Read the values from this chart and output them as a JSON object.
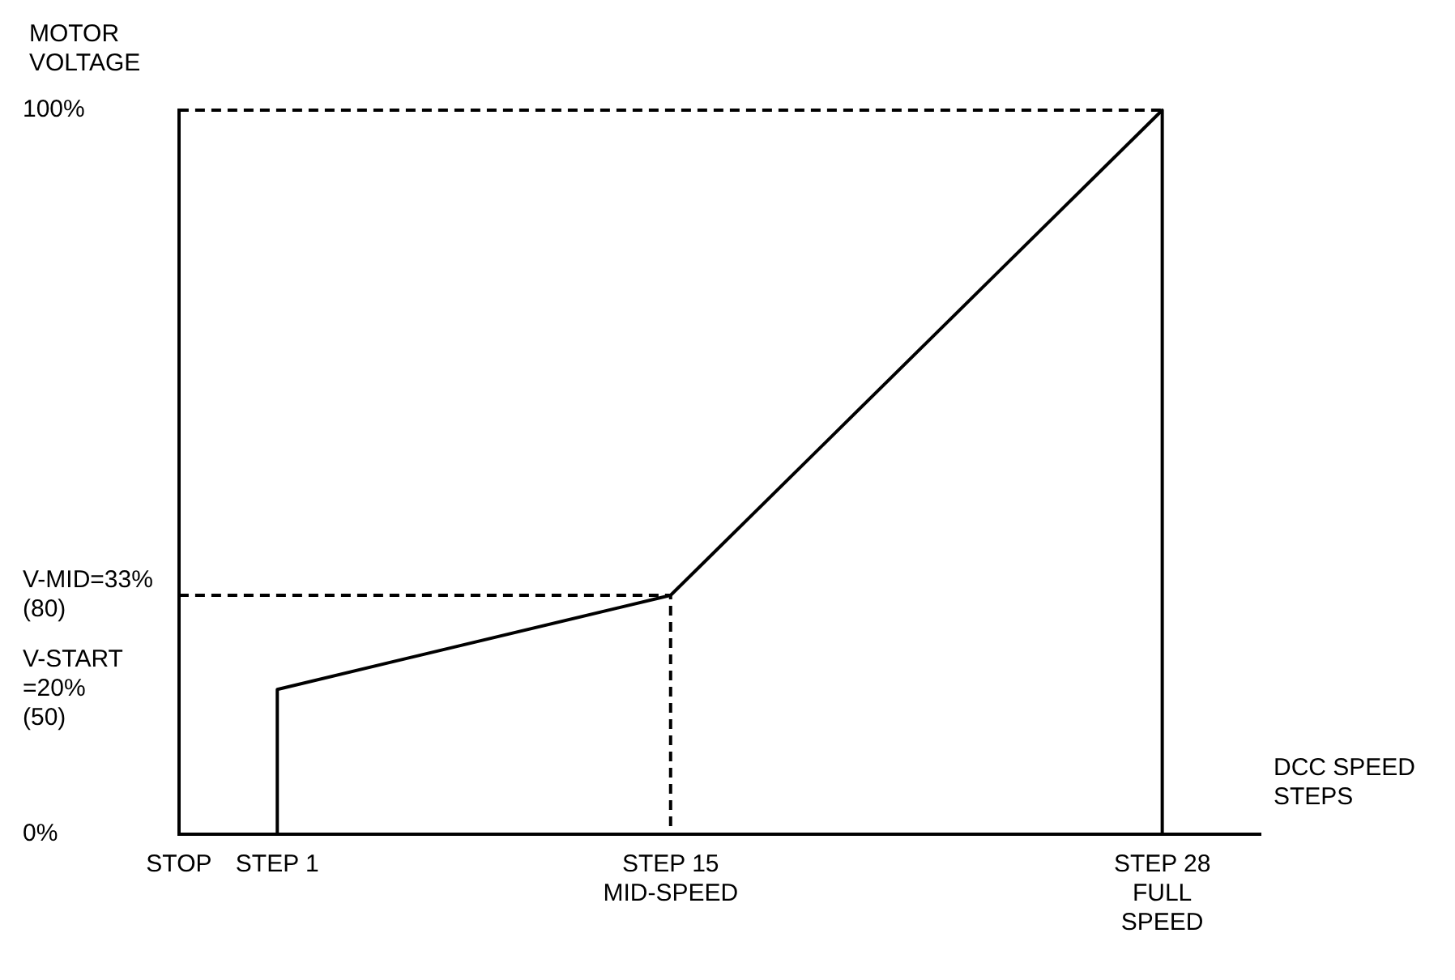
{
  "chart_data": {
    "type": "line",
    "xlabel": "DCC SPEED\nSTEPS",
    "ylabel": "MOTOR\nVOLTAGE",
    "categories": [
      "STOP",
      "STEP 1",
      null,
      null,
      null,
      "STEP 15\nMID-SPEED",
      null,
      null,
      null,
      null,
      "STEP 28\nFULL\nSPEED",
      null
    ],
    "ylim": [
      0,
      100
    ],
    "yticks": [
      {
        "value": 0,
        "label": "0%"
      },
      {
        "value": 20,
        "label": "V-START\n=20%\n(50)"
      },
      {
        "value": 33,
        "label": "V-MID=33%\n(80)"
      },
      {
        "value": 100,
        "label": "100%"
      }
    ],
    "grid": false,
    "legend": false,
    "marker": "none",
    "series": [
      {
        "color": "#000000",
        "line_style": "solid",
        "x": [
          "STEP 1",
          "STEP 1",
          "STEP 15\nMID-SPEED",
          "STEP 28\nFULL\nSPEED",
          "STEP 28\nFULL\nSPEED"
        ],
        "values": [
          0,
          20,
          33,
          100,
          0
        ]
      },
      {
        "color": "#000000",
        "line_style": "dashed",
        "x": [
          "STOP",
          "STEP 28\nFULL\nSPEED"
        ],
        "values": [
          100,
          100
        ]
      },
      {
        "color": "#000000",
        "line_style": "dashed",
        "x": [
          "STOP",
          "STEP 15\nMID-SPEED",
          "STEP 15\nMID-SPEED"
        ],
        "values": [
          33,
          33,
          0
        ]
      }
    ]
  }
}
